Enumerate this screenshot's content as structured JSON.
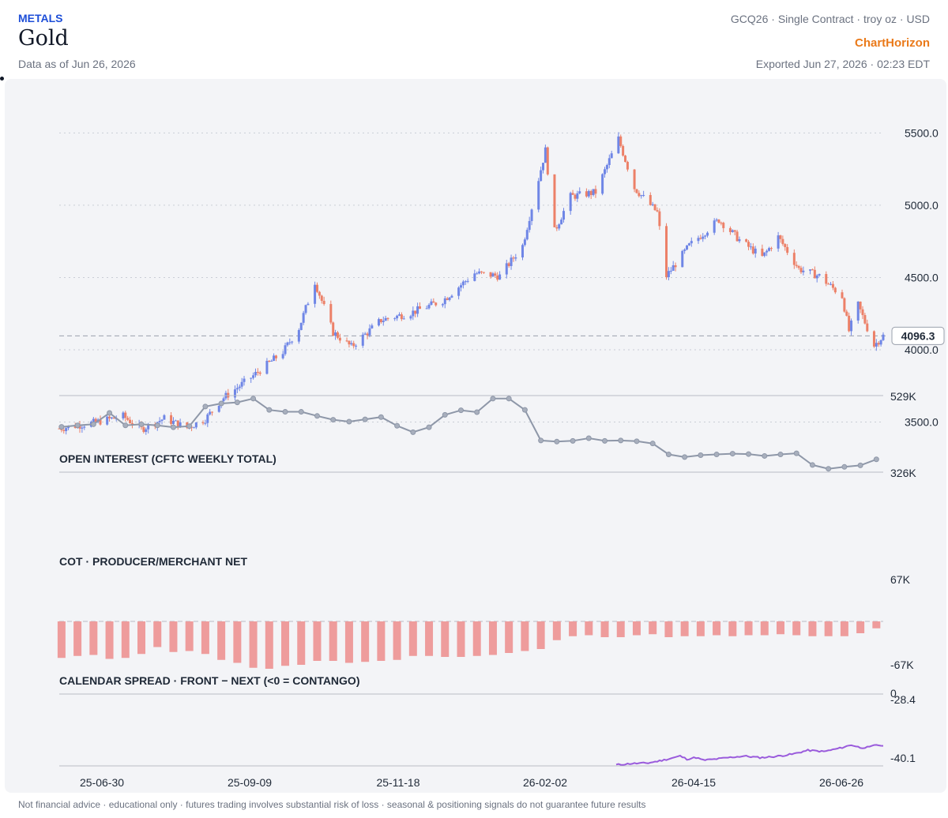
{
  "header": {
    "category": "METALS",
    "title": "Gold",
    "as_of": "Data as of Jun 26, 2026",
    "contract": "GCQ26 · Single Contract · troy oz · USD",
    "brand": "ChartHorizon",
    "exported": "Exported Jun 27, 2026 · 02:23 EDT"
  },
  "footer": {
    "disclaimer": "Not financial advice · educational only · futures trading involves substantial risk of loss · seasonal & positioning signals do not guarantee future results"
  },
  "colors": {
    "up": "#6f86e6",
    "down": "#ec8068",
    "oi_line": "#8e97a8",
    "cot_bar": "#ee9c9c",
    "spread_line": "#9a5bdc",
    "grid": "#c9cdd6",
    "brand": "#ea7a1a",
    "category": "#1d4ed8"
  },
  "chart_data": [
    {
      "type": "candlestick",
      "title": "",
      "y_ticks": [
        3500.0,
        4000.0,
        4500.0,
        5000.0,
        5500.0
      ],
      "ylim": [
        3415,
        5710
      ],
      "last_price": 4096.3,
      "last_price_label": "4096.3",
      "x_ticks": [
        "25-06-30",
        "25-09-09",
        "25-11-18",
        "26-02-02",
        "26-04-15",
        "26-06-26"
      ],
      "x_range": [
        "2025-06-30",
        "2026-06-26"
      ],
      "approx_closes": [
        {
          "date": "2025-06-30",
          "close": 3455
        },
        {
          "date": "2025-07-15",
          "close": 3495
        },
        {
          "date": "2025-07-28",
          "close": 3540
        },
        {
          "date": "2025-08-05",
          "close": 3450
        },
        {
          "date": "2025-08-15",
          "close": 3525
        },
        {
          "date": "2025-08-25",
          "close": 3460
        },
        {
          "date": "2025-09-02",
          "close": 3520
        },
        {
          "date": "2025-09-09",
          "close": 3655
        },
        {
          "date": "2025-09-23",
          "close": 3820
        },
        {
          "date": "2025-10-06",
          "close": 3985
        },
        {
          "date": "2025-10-13",
          "close": 4150
        },
        {
          "date": "2025-10-20",
          "close": 4470
        },
        {
          "date": "2025-10-28",
          "close": 4120
        },
        {
          "date": "2025-11-05",
          "close": 4020
        },
        {
          "date": "2025-11-18",
          "close": 4205
        },
        {
          "date": "2025-12-01",
          "close": 4255
        },
        {
          "date": "2025-12-15",
          "close": 4340
        },
        {
          "date": "2025-12-29",
          "close": 4530
        },
        {
          "date": "2026-01-09",
          "close": 4510
        },
        {
          "date": "2026-01-19",
          "close": 4720
        },
        {
          "date": "2026-01-29",
          "close": 5380
        },
        {
          "date": "2026-02-02",
          "close": 4820
        },
        {
          "date": "2026-02-09",
          "close": 5060
        },
        {
          "date": "2026-02-20",
          "close": 5090
        },
        {
          "date": "2026-03-02",
          "close": 5460
        },
        {
          "date": "2026-03-09",
          "close": 5120
        },
        {
          "date": "2026-03-19",
          "close": 4950
        },
        {
          "date": "2026-03-23",
          "close": 4510
        },
        {
          "date": "2026-04-02",
          "close": 4720
        },
        {
          "date": "2026-04-15",
          "close": 4900
        },
        {
          "date": "2026-04-24",
          "close": 4760
        },
        {
          "date": "2026-05-04",
          "close": 4640
        },
        {
          "date": "2026-05-11",
          "close": 4780
        },
        {
          "date": "2026-05-20",
          "close": 4560
        },
        {
          "date": "2026-05-29",
          "close": 4510
        },
        {
          "date": "2026-06-08",
          "close": 4370
        },
        {
          "date": "2026-06-11",
          "close": 4130
        },
        {
          "date": "2026-06-15",
          "close": 4310
        },
        {
          "date": "2026-06-22",
          "close": 4030
        },
        {
          "date": "2026-06-26",
          "close": 4096.3
        }
      ]
    },
    {
      "type": "line",
      "title": "OPEN INTEREST (CFTC WEEKLY TOTAL)",
      "y_tick_labels": [
        "529K",
        "326K"
      ],
      "ylim": [
        326,
        529
      ],
      "units": "thousand contracts",
      "x": [
        "2025-07-01",
        "2025-07-08",
        "2025-07-15",
        "2025-07-22",
        "2025-07-29",
        "2025-08-05",
        "2025-08-12",
        "2025-08-19",
        "2025-08-26",
        "2025-09-02",
        "2025-09-09",
        "2025-09-16",
        "2025-09-23",
        "2025-09-30",
        "2025-10-07",
        "2025-10-14",
        "2025-10-21",
        "2025-10-28",
        "2025-11-04",
        "2025-11-11",
        "2025-11-18",
        "2025-11-25",
        "2025-12-02",
        "2025-12-09",
        "2025-12-16",
        "2025-12-23",
        "2025-12-30",
        "2026-01-06",
        "2026-01-13",
        "2026-01-20",
        "2026-01-27",
        "2026-02-03",
        "2026-02-10",
        "2026-02-17",
        "2026-02-24",
        "2026-03-03",
        "2026-03-10",
        "2026-03-17",
        "2026-03-24",
        "2026-03-31",
        "2026-04-07",
        "2026-04-14",
        "2026-04-21",
        "2026-04-28",
        "2026-05-05",
        "2026-05-12",
        "2026-05-19",
        "2026-05-26",
        "2026-06-02",
        "2026-06-09",
        "2026-06-16",
        "2026-06-23"
      ],
      "values": [
        446,
        450,
        453,
        483,
        450,
        453,
        450,
        445,
        448,
        500,
        508,
        511,
        521,
        491,
        486,
        486,
        475,
        465,
        460,
        466,
        472,
        449,
        432,
        445,
        478,
        490,
        485,
        521,
        521,
        491,
        410,
        407,
        409,
        416,
        409,
        410,
        408,
        402,
        373,
        366,
        371,
        373,
        375,
        374,
        369,
        373,
        376,
        345,
        335,
        340,
        344,
        360
      ]
    },
    {
      "type": "bar",
      "title": "COT · PRODUCER/MERCHANT NET",
      "y_tick_labels": [
        "67K",
        "-67K"
      ],
      "ylim": [
        -67,
        67
      ],
      "units": "thousand contracts",
      "x": [
        "2025-07-01",
        "2025-07-08",
        "2025-07-15",
        "2025-07-22",
        "2025-07-29",
        "2025-08-05",
        "2025-08-12",
        "2025-08-19",
        "2025-08-26",
        "2025-09-02",
        "2025-09-09",
        "2025-09-16",
        "2025-09-23",
        "2025-09-30",
        "2025-10-07",
        "2025-10-14",
        "2025-10-21",
        "2025-10-28",
        "2025-11-04",
        "2025-11-11",
        "2025-11-18",
        "2025-11-25",
        "2025-12-02",
        "2025-12-09",
        "2025-12-16",
        "2025-12-23",
        "2025-12-30",
        "2026-01-06",
        "2026-01-13",
        "2026-01-20",
        "2026-01-27",
        "2026-02-03",
        "2026-02-10",
        "2026-02-17",
        "2026-02-24",
        "2026-03-03",
        "2026-03-10",
        "2026-03-17",
        "2026-03-24",
        "2026-03-31",
        "2026-04-07",
        "2026-04-14",
        "2026-04-21",
        "2026-04-28",
        "2026-05-05",
        "2026-05-12",
        "2026-05-19",
        "2026-05-26",
        "2026-06-02",
        "2026-06-09",
        "2026-06-16",
        "2026-06-23"
      ],
      "values": [
        -37,
        -35,
        -34,
        -38,
        -37,
        -33,
        -26,
        -31,
        -30,
        -33,
        -39,
        -42,
        -47,
        -48,
        -45,
        -44,
        -40,
        -40,
        -42,
        -41,
        -40,
        -39,
        -35,
        -35,
        -36,
        -36,
        -35,
        -34,
        -32,
        -30,
        -28,
        -19,
        -15,
        -14,
        -16,
        -16,
        -14,
        -13,
        -16,
        -15,
        -15,
        -14,
        -15,
        -14,
        -14,
        -13,
        -14,
        -15,
        -15,
        -15,
        -12,
        -7
      ]
    },
    {
      "type": "line",
      "title": "CALENDAR SPREAD · FRONT − NEXT (<0 = CONTANGO)",
      "y_tick_labels": [
        "0",
        "-28.4",
        "-40.1"
      ],
      "ylim": [
        -40.1,
        0
      ],
      "x_range": [
        "2026-03-01",
        "2026-06-26"
      ],
      "approx_points": [
        {
          "date": "2026-03-01",
          "value": -39.5
        },
        {
          "date": "2026-03-08",
          "value": -38.8
        },
        {
          "date": "2026-03-15",
          "value": -38.5
        },
        {
          "date": "2026-03-22",
          "value": -36.8
        },
        {
          "date": "2026-03-29",
          "value": -34.6
        },
        {
          "date": "2026-04-01",
          "value": -36.3
        },
        {
          "date": "2026-04-05",
          "value": -35.4
        },
        {
          "date": "2026-04-08",
          "value": -36.9
        },
        {
          "date": "2026-04-12",
          "value": -36.5
        },
        {
          "date": "2026-04-19",
          "value": -35.5
        },
        {
          "date": "2026-04-26",
          "value": -34.6
        },
        {
          "date": "2026-05-03",
          "value": -35.5
        },
        {
          "date": "2026-05-10",
          "value": -34.8
        },
        {
          "date": "2026-05-17",
          "value": -33.6
        },
        {
          "date": "2026-05-24",
          "value": -31.4
        },
        {
          "date": "2026-05-31",
          "value": -32.1
        },
        {
          "date": "2026-06-07",
          "value": -30.2
        },
        {
          "date": "2026-06-12",
          "value": -28.4
        },
        {
          "date": "2026-06-16",
          "value": -29.9
        },
        {
          "date": "2026-06-20",
          "value": -29.7
        },
        {
          "date": "2026-06-23",
          "value": -28.3
        },
        {
          "date": "2026-06-26",
          "value": -28.9
        }
      ]
    }
  ]
}
